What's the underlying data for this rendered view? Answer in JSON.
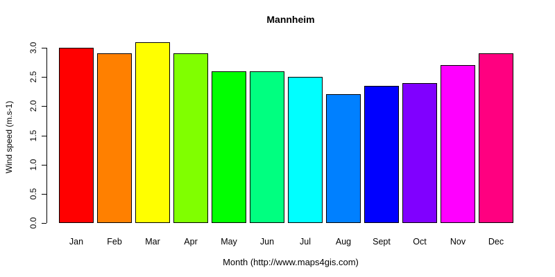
{
  "chart_data": {
    "type": "bar",
    "title": "Mannheim",
    "xlabel": "Month (http://www.maps4gis.com)",
    "ylabel": "Wind speed (m.s-1)",
    "categories": [
      "Jan",
      "Feb",
      "Mar",
      "Apr",
      "May",
      "Jun",
      "Jul",
      "Aug",
      "Sept",
      "Oct",
      "Nov",
      "Dec"
    ],
    "values": [
      3.0,
      2.9,
      3.1,
      2.9,
      2.6,
      2.6,
      2.5,
      2.2,
      2.35,
      2.4,
      2.7,
      2.9
    ],
    "bar_colors": [
      "#FF0000",
      "#FF8000",
      "#FFFF00",
      "#80FF00",
      "#00FF00",
      "#00FF80",
      "#00FFFF",
      "#0080FF",
      "#0000FF",
      "#8000FF",
      "#FF00FF",
      "#FF0080"
    ],
    "bar_border_color": "#000000",
    "yticks": [
      0.0,
      0.5,
      1.0,
      1.5,
      2.0,
      2.5,
      3.0
    ],
    "ytick_labels": [
      "0.0",
      "0.5",
      "1.0",
      "1.5",
      "2.0",
      "2.5",
      "3.0"
    ],
    "ylim": [
      0,
      3.1
    ],
    "grid": false,
    "legend": null,
    "background": "#FFFFFF",
    "text_color": "#000000"
  }
}
